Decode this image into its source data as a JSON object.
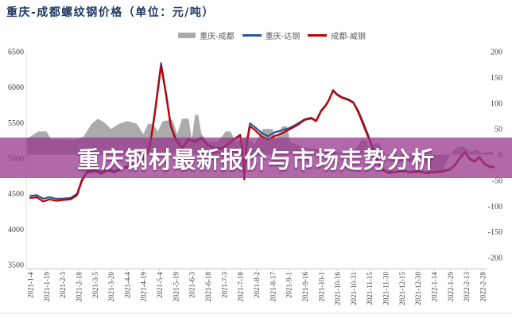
{
  "title": "重庆-成都螺纹钢价格（单位：元/吨）",
  "banner": {
    "text": "重庆钢材最新报价与市场走势分析"
  },
  "colors": {
    "title": "#1f3864",
    "banner": "rgba(152,55,142,0.75)",
    "area": "#ababab",
    "blue_line": "#2d5597",
    "red_line": "#c00000",
    "axis": "#c9c9c9",
    "tick_label": "#3f3f3f"
  },
  "legend": [
    {
      "label": "重庆-成都",
      "type": "area",
      "color": "#ababab"
    },
    {
      "label": "重庆-达钢",
      "type": "line",
      "color": "#2d5597"
    },
    {
      "label": "成都-威钢",
      "type": "line",
      "color": "#c00000"
    }
  ],
  "chart_data": {
    "type": "line",
    "title": "重庆-成都螺纹钢价格（单位：元/吨）",
    "xlabel": "",
    "ylabel": "元/吨",
    "grid": false,
    "legend_position": "top",
    "x_tick_labels": [
      "2021-1-4",
      "2021-1-19",
      "2021-2-3",
      "2021-2-18",
      "2021-3-5",
      "2021-3-20",
      "2021-4-4",
      "2021-4-19",
      "2021-5-4",
      "2021-5-19",
      "2021-6-3",
      "2021-6-18",
      "2021-7-3",
      "2021-7-18",
      "2021-8-2",
      "2021-8-17",
      "2021-9-1",
      "2021-9-16",
      "2021-10-1",
      "2021-10-16",
      "2021-10-31",
      "2021-11-15",
      "2021-11-30",
      "2021-12-15",
      "2021-12-30",
      "2022-1-14",
      "2022-1-29",
      "2022-2-13",
      "2022-2-28"
    ],
    "left_axis": {
      "min": 3500,
      "max": 6500,
      "ticks": [
        6500,
        6000,
        5500,
        5000,
        4500,
        4000,
        3500
      ]
    },
    "right_axis": {
      "min": -200,
      "max": 200,
      "ticks": [
        200,
        150,
        100,
        50,
        0,
        -50,
        -100,
        -150,
        -200
      ]
    },
    "series": [
      {
        "name": "重庆-成都",
        "axis": "right",
        "type": "area",
        "color": "#ababab",
        "points": [
          [
            -0.2,
            30
          ],
          [
            0,
            35
          ],
          [
            0.5,
            45
          ],
          [
            1,
            45
          ],
          [
            1.3,
            30
          ],
          [
            2,
            30
          ],
          [
            2.7,
            28
          ],
          [
            3.3,
            35
          ],
          [
            3.8,
            60
          ],
          [
            4.2,
            70
          ],
          [
            4.6,
            62
          ],
          [
            5,
            50
          ],
          [
            5.5,
            60
          ],
          [
            6,
            65
          ],
          [
            6.6,
            60
          ],
          [
            7,
            40
          ],
          [
            7.3,
            60
          ],
          [
            7.6,
            60
          ],
          [
            7.9,
            45
          ],
          [
            8.2,
            65
          ],
          [
            8.8,
            68
          ],
          [
            9.1,
            40
          ],
          [
            9.4,
            70
          ],
          [
            9.8,
            70
          ],
          [
            10,
            30
          ],
          [
            10.2,
            77
          ],
          [
            10.4,
            77
          ],
          [
            10.6,
            40
          ],
          [
            11,
            25
          ],
          [
            11.6,
            25
          ],
          [
            12.1,
            45
          ],
          [
            12.4,
            45
          ],
          [
            12.7,
            25
          ],
          [
            13.4,
            35
          ],
          [
            13.9,
            20
          ],
          [
            14.4,
            50
          ],
          [
            15,
            50
          ],
          [
            15.2,
            30
          ],
          [
            15.6,
            55
          ],
          [
            15.9,
            55
          ],
          [
            16.1,
            25
          ],
          [
            16.8,
            15
          ],
          [
            17.6,
            12
          ],
          [
            18.3,
            8
          ],
          [
            19,
            5
          ],
          [
            20,
            5
          ],
          [
            20.5,
            28
          ],
          [
            20.8,
            28
          ],
          [
            21,
            12
          ],
          [
            21.3,
            22
          ],
          [
            21.6,
            22
          ],
          [
            21.9,
            5
          ],
          [
            22.3,
            -10
          ],
          [
            22.8,
            -18
          ],
          [
            23.2,
            -8
          ],
          [
            23.6,
            -20
          ],
          [
            24,
            -5
          ],
          [
            24.4,
            -15
          ],
          [
            25.1,
            -35
          ],
          [
            25.5,
            -35
          ],
          [
            25.8,
            -10
          ],
          [
            26.2,
            8
          ],
          [
            26.5,
            15
          ],
          [
            26.9,
            15
          ],
          [
            27.2,
            5
          ],
          [
            27.6,
            10
          ],
          [
            28,
            3
          ],
          [
            28.4,
            6
          ],
          [
            28.7,
            4
          ]
        ]
      },
      {
        "name": "重庆-达钢",
        "axis": "left",
        "type": "line",
        "color": "#2d5597",
        "points": [
          [
            0,
            4470
          ],
          [
            0.4,
            4480
          ],
          [
            0.8,
            4430
          ],
          [
            1.2,
            4450
          ],
          [
            1.6,
            4430
          ],
          [
            2,
            4430
          ],
          [
            2.5,
            4440
          ],
          [
            2.9,
            4500
          ],
          [
            3.2,
            4700
          ],
          [
            3.5,
            4810
          ],
          [
            4,
            4840
          ],
          [
            4.4,
            4800
          ],
          [
            4.8,
            4850
          ],
          [
            5.2,
            4820
          ],
          [
            5.6,
            4860
          ],
          [
            6,
            4890
          ],
          [
            6.5,
            4920
          ],
          [
            7,
            5000
          ],
          [
            7.4,
            5170
          ],
          [
            7.7,
            5630
          ],
          [
            8.1,
            6340
          ],
          [
            8.4,
            5930
          ],
          [
            8.7,
            5470
          ],
          [
            9,
            5280
          ],
          [
            9.4,
            5150
          ],
          [
            9.8,
            5270
          ],
          [
            10.2,
            5240
          ],
          [
            10.6,
            5290
          ],
          [
            11,
            5190
          ],
          [
            11.4,
            5150
          ],
          [
            11.8,
            5140
          ],
          [
            12.2,
            5200
          ],
          [
            12.6,
            5270
          ],
          [
            13,
            5330
          ],
          [
            13.15,
            5080
          ],
          [
            13.25,
            4730
          ],
          [
            13.4,
            5220
          ],
          [
            13.6,
            5490
          ],
          [
            13.9,
            5440
          ],
          [
            14.3,
            5360
          ],
          [
            14.7,
            5310
          ],
          [
            15.1,
            5360
          ],
          [
            15.5,
            5390
          ],
          [
            16,
            5420
          ],
          [
            16.5,
            5480
          ],
          [
            17,
            5550
          ],
          [
            17.4,
            5570
          ],
          [
            17.7,
            5530
          ],
          [
            18,
            5670
          ],
          [
            18.3,
            5750
          ],
          [
            18.5,
            5830
          ],
          [
            18.75,
            5960
          ],
          [
            19,
            5900
          ],
          [
            19.3,
            5860
          ],
          [
            19.7,
            5830
          ],
          [
            20,
            5790
          ],
          [
            20.3,
            5670
          ],
          [
            20.6,
            5510
          ],
          [
            21,
            5280
          ],
          [
            21.4,
            5030
          ],
          [
            21.8,
            4850
          ],
          [
            22.2,
            4800
          ],
          [
            22.6,
            4810
          ],
          [
            23,
            4830
          ],
          [
            23.5,
            4810
          ],
          [
            24,
            4820
          ],
          [
            24.5,
            4800
          ],
          [
            25,
            4810
          ],
          [
            25.5,
            4820
          ],
          [
            26,
            4850
          ],
          [
            26.3,
            4910
          ],
          [
            26.6,
            5010
          ],
          [
            26.9,
            5090
          ],
          [
            27.2,
            5000
          ],
          [
            27.5,
            4960
          ],
          [
            27.8,
            5020
          ],
          [
            28.1,
            4930
          ],
          [
            28.4,
            4890
          ],
          [
            28.7,
            4880
          ]
        ]
      },
      {
        "name": "成都-威钢",
        "axis": "left",
        "type": "line",
        "color": "#c00000",
        "points": [
          [
            0,
            4440
          ],
          [
            0.4,
            4450
          ],
          [
            0.8,
            4390
          ],
          [
            1.2,
            4420
          ],
          [
            1.6,
            4400
          ],
          [
            2,
            4410
          ],
          [
            2.5,
            4420
          ],
          [
            2.9,
            4480
          ],
          [
            3.2,
            4680
          ],
          [
            3.5,
            4790
          ],
          [
            4,
            4820
          ],
          [
            4.4,
            4780
          ],
          [
            4.8,
            4830
          ],
          [
            5.2,
            4800
          ],
          [
            5.6,
            4840
          ],
          [
            6,
            4870
          ],
          [
            6.5,
            4900
          ],
          [
            7,
            4980
          ],
          [
            7.4,
            5150
          ],
          [
            7.7,
            5600
          ],
          [
            8.1,
            6300
          ],
          [
            8.4,
            5900
          ],
          [
            8.7,
            5450
          ],
          [
            9,
            5260
          ],
          [
            9.4,
            5130
          ],
          [
            9.8,
            5260
          ],
          [
            10.2,
            5230
          ],
          [
            10.6,
            5280
          ],
          [
            11,
            5180
          ],
          [
            11.4,
            5140
          ],
          [
            11.8,
            5130
          ],
          [
            12.2,
            5190
          ],
          [
            12.6,
            5260
          ],
          [
            13,
            5320
          ],
          [
            13.15,
            5050
          ],
          [
            13.25,
            4700
          ],
          [
            13.4,
            5200
          ],
          [
            13.6,
            5450
          ],
          [
            13.9,
            5400
          ],
          [
            14.3,
            5310
          ],
          [
            14.7,
            5260
          ],
          [
            15.1,
            5310
          ],
          [
            15.5,
            5340
          ],
          [
            16,
            5400
          ],
          [
            16.5,
            5460
          ],
          [
            17,
            5540
          ],
          [
            17.4,
            5560
          ],
          [
            17.7,
            5520
          ],
          [
            18,
            5660
          ],
          [
            18.3,
            5740
          ],
          [
            18.5,
            5820
          ],
          [
            18.75,
            5950
          ],
          [
            19,
            5890
          ],
          [
            19.3,
            5850
          ],
          [
            19.7,
            5820
          ],
          [
            20,
            5780
          ],
          [
            20.3,
            5650
          ],
          [
            20.6,
            5480
          ],
          [
            21,
            5250
          ],
          [
            21.4,
            5000
          ],
          [
            21.8,
            4830
          ],
          [
            22.2,
            4790
          ],
          [
            22.6,
            4800
          ],
          [
            23,
            4820
          ],
          [
            23.5,
            4800
          ],
          [
            24,
            4810
          ],
          [
            24.5,
            4790
          ],
          [
            25,
            4800
          ],
          [
            25.5,
            4810
          ],
          [
            26,
            4840
          ],
          [
            26.3,
            4900
          ],
          [
            26.6,
            5000
          ],
          [
            26.9,
            5080
          ],
          [
            27.2,
            4990
          ],
          [
            27.5,
            4950
          ],
          [
            27.8,
            5010
          ],
          [
            28.1,
            4920
          ],
          [
            28.4,
            4880
          ],
          [
            28.7,
            4870
          ]
        ]
      }
    ]
  }
}
